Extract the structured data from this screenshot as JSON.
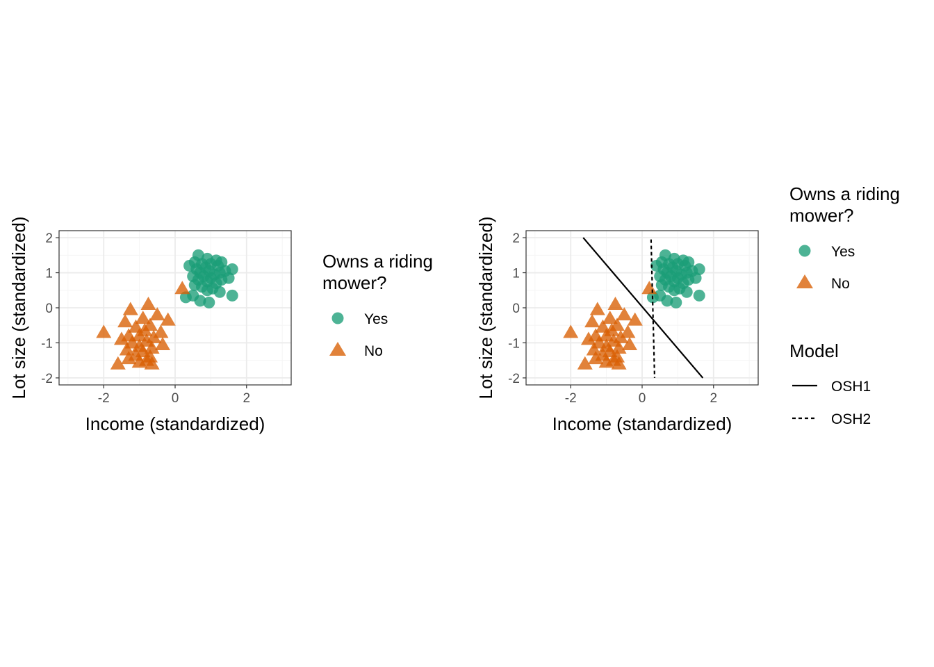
{
  "colors": {
    "yes": "#1b9e77",
    "no": "#d95f02",
    "grid_major": "#ebebeb",
    "grid_minor": "#f5f5f5",
    "panel_border": "#333333",
    "line": "#000000"
  },
  "chart_data": [
    {
      "type": "scatter",
      "xlabel": "Income (standardized)",
      "ylabel": "Lot size (standardized)",
      "xlim": [
        -3.25,
        3.25
      ],
      "ylim": [
        -2.2,
        2.2
      ],
      "x_ticks": [
        -2,
        0,
        2
      ],
      "x_tick_labels": [
        "-2",
        "0",
        "2"
      ],
      "y_ticks": [
        -2,
        -1,
        0,
        1,
        2
      ],
      "y_tick_labels": [
        "-2",
        "-1",
        "0",
        "1",
        "2"
      ],
      "grid": true,
      "legend_position": "right",
      "legend": {
        "title_line1": "Owns a riding",
        "title_line2": "mower?",
        "entries": [
          "Yes",
          "No"
        ]
      },
      "series": [
        {
          "name": "Yes",
          "marker": "circle",
          "points": [
            [
              0.65,
              1.5
            ],
            [
              0.9,
              1.4
            ],
            [
              1.15,
              1.35
            ],
            [
              1.3,
              1.3
            ],
            [
              0.55,
              1.3
            ],
            [
              0.75,
              1.25
            ],
            [
              1.0,
              1.25
            ],
            [
              0.4,
              1.2
            ],
            [
              1.2,
              1.2
            ],
            [
              0.85,
              1.15
            ],
            [
              0.6,
              1.1
            ],
            [
              1.4,
              1.05
            ],
            [
              1.6,
              1.1
            ],
            [
              0.95,
              1.05
            ],
            [
              0.7,
              1.0
            ],
            [
              1.25,
              1.0
            ],
            [
              1.1,
              0.95
            ],
            [
              0.5,
              0.9
            ],
            [
              0.8,
              0.9
            ],
            [
              1.5,
              0.85
            ],
            [
              1.0,
              0.85
            ],
            [
              0.65,
              0.8
            ],
            [
              1.3,
              0.8
            ],
            [
              0.9,
              0.75
            ],
            [
              1.15,
              0.7
            ],
            [
              0.55,
              0.65
            ],
            [
              0.75,
              0.6
            ],
            [
              1.05,
              0.55
            ],
            [
              0.9,
              0.5
            ],
            [
              1.25,
              0.45
            ],
            [
              0.5,
              0.35
            ],
            [
              0.3,
              0.3
            ],
            [
              1.6,
              0.35
            ],
            [
              0.7,
              0.2
            ],
            [
              0.95,
              0.15
            ]
          ]
        },
        {
          "name": "No",
          "marker": "triangle",
          "points": [
            [
              0.2,
              0.55
            ],
            [
              -0.75,
              0.1
            ],
            [
              -1.25,
              -0.05
            ],
            [
              -0.5,
              -0.2
            ],
            [
              -0.9,
              -0.3
            ],
            [
              -0.2,
              -0.35
            ],
            [
              -1.4,
              -0.4
            ],
            [
              -0.7,
              -0.5
            ],
            [
              -1.1,
              -0.55
            ],
            [
              -2.0,
              -0.7
            ],
            [
              -0.85,
              -0.65
            ],
            [
              -0.4,
              -0.7
            ],
            [
              -1.3,
              -0.8
            ],
            [
              -1.0,
              -0.8
            ],
            [
              -0.6,
              -0.85
            ],
            [
              -1.5,
              -0.9
            ],
            [
              -0.8,
              -0.95
            ],
            [
              -1.2,
              -1.0
            ],
            [
              -0.35,
              -1.05
            ],
            [
              -1.0,
              -1.1
            ],
            [
              -0.65,
              -1.15
            ],
            [
              -1.35,
              -1.2
            ],
            [
              -0.9,
              -1.25
            ],
            [
              -1.1,
              -1.35
            ],
            [
              -0.7,
              -1.4
            ],
            [
              -1.3,
              -1.45
            ],
            [
              -0.8,
              -1.5
            ],
            [
              -1.6,
              -1.6
            ],
            [
              -0.65,
              -1.6
            ],
            [
              -1.0,
              -1.55
            ]
          ]
        }
      ]
    },
    {
      "type": "scatter",
      "xlabel": "Income (standardized)",
      "ylabel": "Lot size (standardized)",
      "xlim": [
        -3.25,
        3.25
      ],
      "ylim": [
        -2.2,
        2.2
      ],
      "x_ticks": [
        -2,
        0,
        2
      ],
      "x_tick_labels": [
        "-2",
        "0",
        "2"
      ],
      "y_ticks": [
        -2,
        -1,
        0,
        1,
        2
      ],
      "y_tick_labels": [
        "-2",
        "-1",
        "0",
        "1",
        "2"
      ],
      "grid": true,
      "legend_position": "right",
      "legend": {
        "title_line1": "Owns a riding",
        "title_line2": "mower?",
        "entries": [
          "Yes",
          "No"
        ],
        "model_title": "Model",
        "model_entries": [
          "OSH1",
          "OSH2"
        ]
      },
      "series": [
        {
          "name": "Yes",
          "marker": "circle",
          "points": [
            [
              0.65,
              1.5
            ],
            [
              0.9,
              1.4
            ],
            [
              1.15,
              1.35
            ],
            [
              1.3,
              1.3
            ],
            [
              0.55,
              1.3
            ],
            [
              0.75,
              1.25
            ],
            [
              1.0,
              1.25
            ],
            [
              0.4,
              1.2
            ],
            [
              1.2,
              1.2
            ],
            [
              0.85,
              1.15
            ],
            [
              0.6,
              1.1
            ],
            [
              1.4,
              1.05
            ],
            [
              1.6,
              1.1
            ],
            [
              0.95,
              1.05
            ],
            [
              0.7,
              1.0
            ],
            [
              1.25,
              1.0
            ],
            [
              1.1,
              0.95
            ],
            [
              0.5,
              0.9
            ],
            [
              0.8,
              0.9
            ],
            [
              1.5,
              0.85
            ],
            [
              1.0,
              0.85
            ],
            [
              0.65,
              0.8
            ],
            [
              1.3,
              0.8
            ],
            [
              0.9,
              0.75
            ],
            [
              1.15,
              0.7
            ],
            [
              0.55,
              0.65
            ],
            [
              0.75,
              0.6
            ],
            [
              1.05,
              0.55
            ],
            [
              0.9,
              0.5
            ],
            [
              1.25,
              0.45
            ],
            [
              0.5,
              0.35
            ],
            [
              0.3,
              0.3
            ],
            [
              1.6,
              0.35
            ],
            [
              0.7,
              0.2
            ],
            [
              0.95,
              0.15
            ]
          ]
        },
        {
          "name": "No",
          "marker": "triangle",
          "points": [
            [
              0.2,
              0.55
            ],
            [
              -0.75,
              0.1
            ],
            [
              -1.25,
              -0.05
            ],
            [
              -0.5,
              -0.2
            ],
            [
              -0.9,
              -0.3
            ],
            [
              -0.2,
              -0.35
            ],
            [
              -1.4,
              -0.4
            ],
            [
              -0.7,
              -0.5
            ],
            [
              -1.1,
              -0.55
            ],
            [
              -2.0,
              -0.7
            ],
            [
              -0.85,
              -0.65
            ],
            [
              -0.4,
              -0.7
            ],
            [
              -1.3,
              -0.8
            ],
            [
              -1.0,
              -0.8
            ],
            [
              -0.6,
              -0.85
            ],
            [
              -1.5,
              -0.9
            ],
            [
              -0.8,
              -0.95
            ],
            [
              -1.2,
              -1.0
            ],
            [
              -0.35,
              -1.05
            ],
            [
              -1.0,
              -1.1
            ],
            [
              -0.65,
              -1.15
            ],
            [
              -1.35,
              -1.2
            ],
            [
              -0.9,
              -1.25
            ],
            [
              -1.1,
              -1.35
            ],
            [
              -0.7,
              -1.4
            ],
            [
              -1.3,
              -1.45
            ],
            [
              -0.8,
              -1.5
            ],
            [
              -1.6,
              -1.6
            ],
            [
              -0.65,
              -1.6
            ],
            [
              -1.0,
              -1.55
            ]
          ]
        }
      ],
      "lines": [
        {
          "name": "OSH1",
          "style": "solid",
          "points": [
            [
              -1.65,
              2.0
            ],
            [
              1.7,
              -2.0
            ]
          ]
        },
        {
          "name": "OSH2",
          "style": "dashed",
          "points": [
            [
              0.25,
              1.95
            ],
            [
              0.35,
              -2.0
            ]
          ]
        }
      ]
    }
  ]
}
